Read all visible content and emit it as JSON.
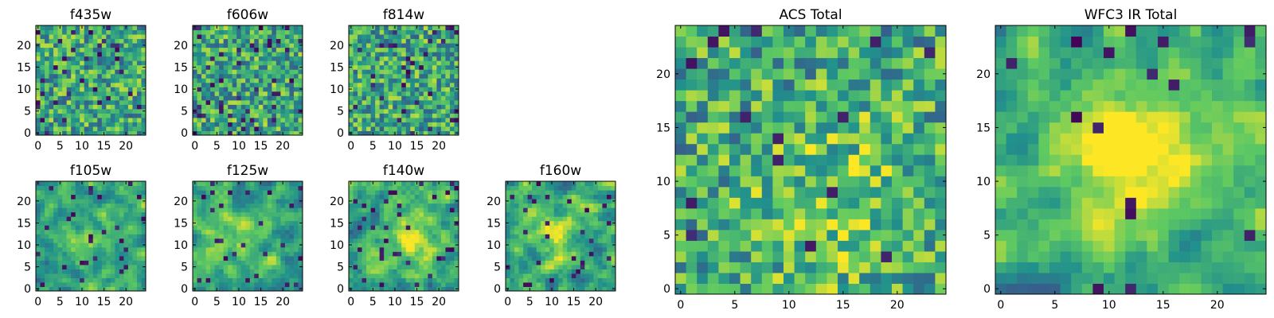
{
  "figure": {
    "colormap": "viridis",
    "colors": [
      "#440154",
      "#3b528b",
      "#21918c",
      "#5ec962",
      "#fde725"
    ],
    "background": "#ffffff",
    "axis_color": "#000000"
  },
  "chart_data": [
    {
      "id": "f435w",
      "type": "heatmap",
      "title": "f435w",
      "size": 25,
      "xlim": [
        -0.5,
        24.5
      ],
      "ylim": [
        -0.5,
        24.5
      ],
      "xticks": [
        0,
        5,
        10,
        15,
        20
      ],
      "yticks": [
        0,
        5,
        10,
        15,
        20
      ],
      "seed": 11,
      "smooth": 0,
      "blobs": [],
      "dark_spots": 0.06
    },
    {
      "id": "f606w",
      "type": "heatmap",
      "title": "f606w",
      "size": 25,
      "xlim": [
        -0.5,
        24.5
      ],
      "ylim": [
        -0.5,
        24.5
      ],
      "xticks": [
        0,
        5,
        10,
        15,
        20
      ],
      "yticks": [
        0,
        5,
        10,
        15,
        20
      ],
      "seed": 23,
      "smooth": 0,
      "blobs": [],
      "dark_spots": 0.06
    },
    {
      "id": "f814w",
      "type": "heatmap",
      "title": "f814w",
      "size": 25,
      "xlim": [
        -0.5,
        24.5
      ],
      "ylim": [
        -0.5,
        24.5
      ],
      "xticks": [
        0,
        5,
        10,
        15,
        20
      ],
      "yticks": [
        0,
        5,
        10,
        15,
        20
      ],
      "seed": 37,
      "smooth": 0,
      "blobs": [],
      "dark_spots": 0.05
    },
    {
      "id": "f105w",
      "type": "heatmap",
      "title": "f105w",
      "size": 25,
      "xlim": [
        -0.5,
        24.5
      ],
      "ylim": [
        -0.5,
        24.5
      ],
      "xticks": [
        0,
        5,
        10,
        15,
        20
      ],
      "yticks": [
        0,
        5,
        10,
        15,
        20
      ],
      "seed": 41,
      "smooth": 1,
      "blobs": [
        {
          "x": 12,
          "y": 11,
          "amp": 0.2,
          "r": 4
        }
      ],
      "dark_spots": 0.05
    },
    {
      "id": "f125w",
      "type": "heatmap",
      "title": "f125w",
      "size": 25,
      "xlim": [
        -0.5,
        24.5
      ],
      "ylim": [
        -0.5,
        24.5
      ],
      "xticks": [
        0,
        5,
        10,
        15,
        20
      ],
      "yticks": [
        0,
        5,
        10,
        15,
        20
      ],
      "seed": 53,
      "smooth": 1,
      "blobs": [
        {
          "x": 10,
          "y": 12,
          "amp": 0.15,
          "r": 4
        }
      ],
      "dark_spots": 0.05
    },
    {
      "id": "f140w",
      "type": "heatmap",
      "title": "f140w",
      "size": 25,
      "xlim": [
        -0.5,
        24.5
      ],
      "ylim": [
        -0.5,
        24.5
      ],
      "xticks": [
        0,
        5,
        10,
        15,
        20
      ],
      "yticks": [
        0,
        5,
        10,
        15,
        20
      ],
      "seed": 67,
      "smooth": 1,
      "blobs": [
        {
          "x": 14,
          "y": 12,
          "amp": 0.3,
          "r": 4
        }
      ],
      "dark_spots": 0.04
    },
    {
      "id": "f160w",
      "type": "heatmap",
      "title": "f160w",
      "size": 25,
      "xlim": [
        -0.5,
        24.5
      ],
      "ylim": [
        -0.5,
        24.5
      ],
      "xticks": [
        0,
        5,
        10,
        15,
        20
      ],
      "yticks": [
        0,
        5,
        10,
        15,
        20
      ],
      "seed": 71,
      "smooth": 1,
      "blobs": [
        {
          "x": 12,
          "y": 13,
          "amp": 0.25,
          "r": 4
        }
      ],
      "dark_spots": 0.04
    },
    {
      "id": "acs-total",
      "type": "heatmap",
      "title": "ACS Total",
      "size": 25,
      "xlim": [
        -0.5,
        24.5
      ],
      "ylim": [
        -0.5,
        24.5
      ],
      "xticks": [
        0,
        5,
        10,
        15,
        20
      ],
      "yticks": [
        0,
        5,
        10,
        15,
        20
      ],
      "seed": 83,
      "smooth": 0,
      "blobs": [
        {
          "x": 15,
          "y": 8,
          "amp": 0.2,
          "r": 6
        }
      ],
      "dark_spots": 0.03
    },
    {
      "id": "wfc3-ir-total",
      "type": "heatmap",
      "title": "WFC3 IR Total",
      "size": 25,
      "xlim": [
        -0.5,
        24.5
      ],
      "ylim": [
        -0.5,
        24.5
      ],
      "xticks": [
        0,
        5,
        10,
        15,
        20
      ],
      "yticks": [
        0,
        5,
        10,
        15,
        20
      ],
      "seed": 97,
      "smooth": 1,
      "blobs": [
        {
          "x": 12,
          "y": 13,
          "amp": 0.45,
          "r": 4
        }
      ],
      "dark_spots": 0.03
    }
  ]
}
